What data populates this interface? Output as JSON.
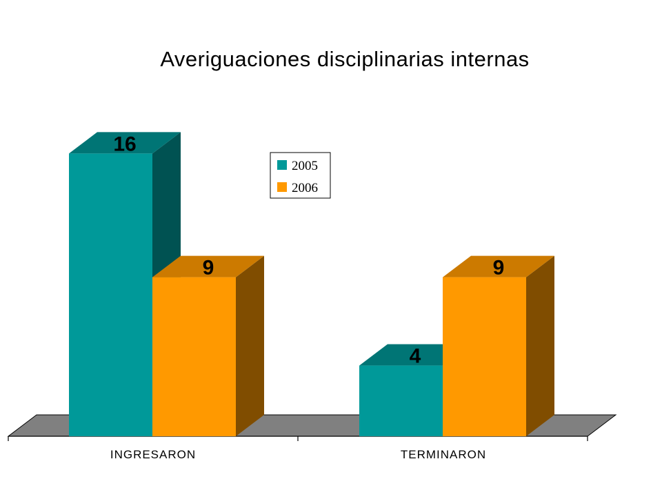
{
  "chart_data": {
    "type": "bar",
    "title": "Averiguaciones disciplinarias internas",
    "categories": [
      "INGRESARON",
      "TERMINARON"
    ],
    "series": [
      {
        "name": "2005",
        "values": [
          16,
          4
        ],
        "color": "#009999",
        "top_color": "#007575",
        "side_color": "#005252"
      },
      {
        "name": "2006",
        "values": [
          9,
          9
        ],
        "color": "#ff9900",
        "top_color": "#cc7a00",
        "side_color": "#804d00"
      }
    ],
    "ylim": [
      0,
      16
    ],
    "xlabel": "",
    "ylabel": "",
    "legend": "inside-top-center",
    "grid": false,
    "floor_color": "#808080"
  }
}
